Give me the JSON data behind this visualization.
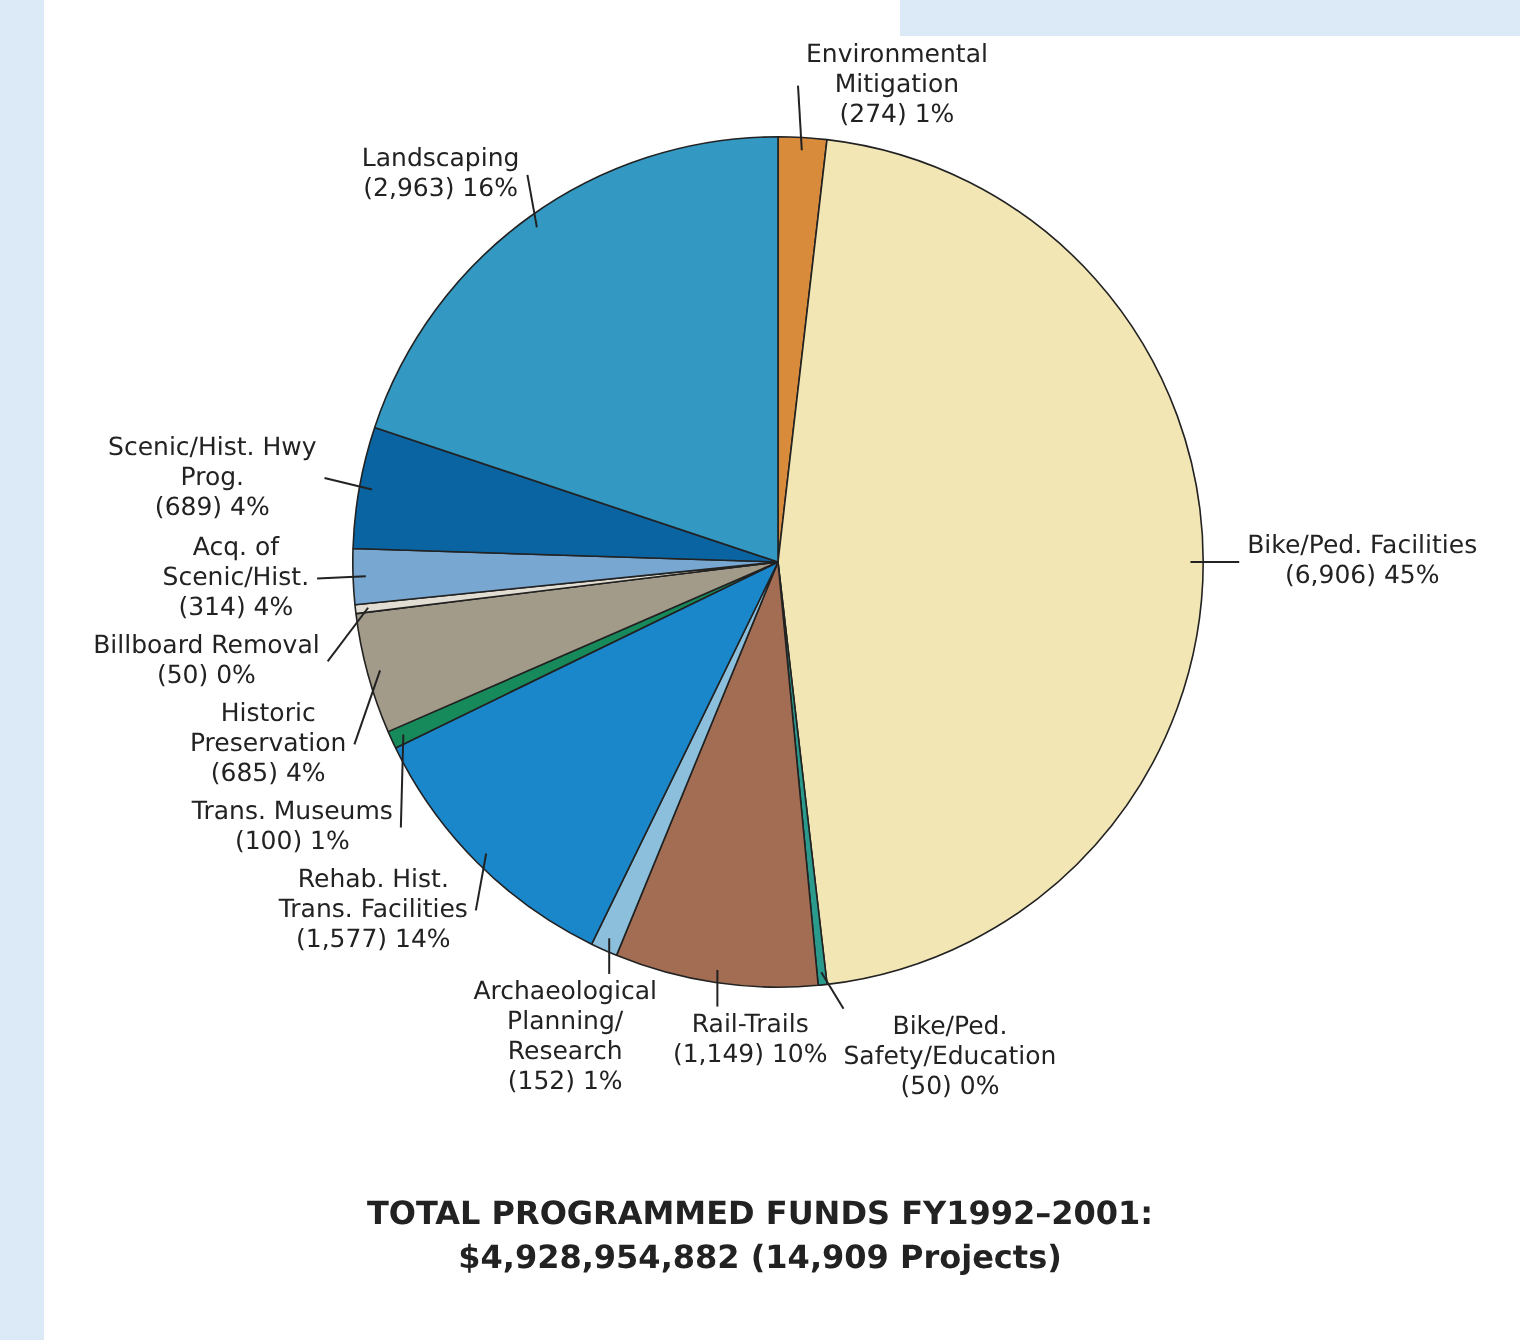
{
  "chart_data": {
    "type": "pie",
    "title": "TOTAL PROGRAMMED FUNDS FY1992–2001:",
    "subtitle": "$4,928,954,882 (14,909 Projects)",
    "categories": [
      "Environmental Mitigation",
      "Bike/Ped. Facilities",
      "Bike/Ped. Safety/Education",
      "Rail-Trails",
      "Archaeological Planning/ Research",
      "Rehab. Hist. Trans. Facilities",
      "Trans. Museums",
      "Historic Preservation",
      "Billboard Removal",
      "Acq. of Scenic/Hist.",
      "Scenic/Hist. Hwy Prog.",
      "Landscaping"
    ],
    "values": [
      274,
      6906,
      50,
      1149,
      152,
      1577,
      100,
      685,
      50,
      314,
      689,
      2963
    ],
    "value_labels": [
      "(274) 1%",
      "(6,906) 45%",
      "(50) 0%",
      "(1,149) 10%",
      "(152) 1%",
      "(1,577) 14%",
      "(100) 1%",
      "(685) 4%",
      "(50) 0%",
      "(314) 4%",
      "(689) 4%",
      "(2,963) 16%"
    ],
    "colors": [
      "#d98b3c",
      "#f2e6b5",
      "#2a9a8c",
      "#a26d52",
      "#8cbfdc",
      "#1a87cb",
      "#178a5c",
      "#a39b8a",
      "#e2ddd2",
      "#78a7d2",
      "#0a64a2",
      "#3399c2"
    ]
  }
}
